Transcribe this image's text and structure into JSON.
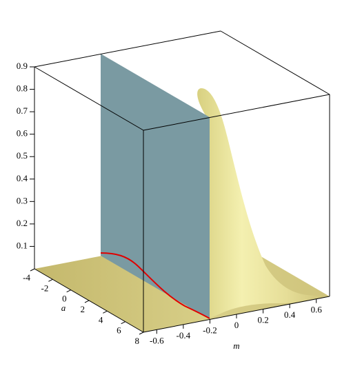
{
  "chart_data": {
    "type": "surface3d",
    "xlabel": "m",
    "ylabel": "a",
    "xlim": [
      -0.7,
      0.7
    ],
    "xticks": [
      -0.6,
      -0.4,
      -0.2,
      0,
      0.2,
      0.4,
      0.6
    ],
    "ylim": [
      -4,
      8
    ],
    "yticks": [
      -4,
      -2,
      0,
      2,
      4,
      6,
      8
    ],
    "zlim": [
      0,
      0.9
    ],
    "zticks": [
      0.1,
      0.2,
      0.3,
      0.4,
      0.5,
      0.6,
      0.7,
      0.8,
      0.9
    ]
  }
}
